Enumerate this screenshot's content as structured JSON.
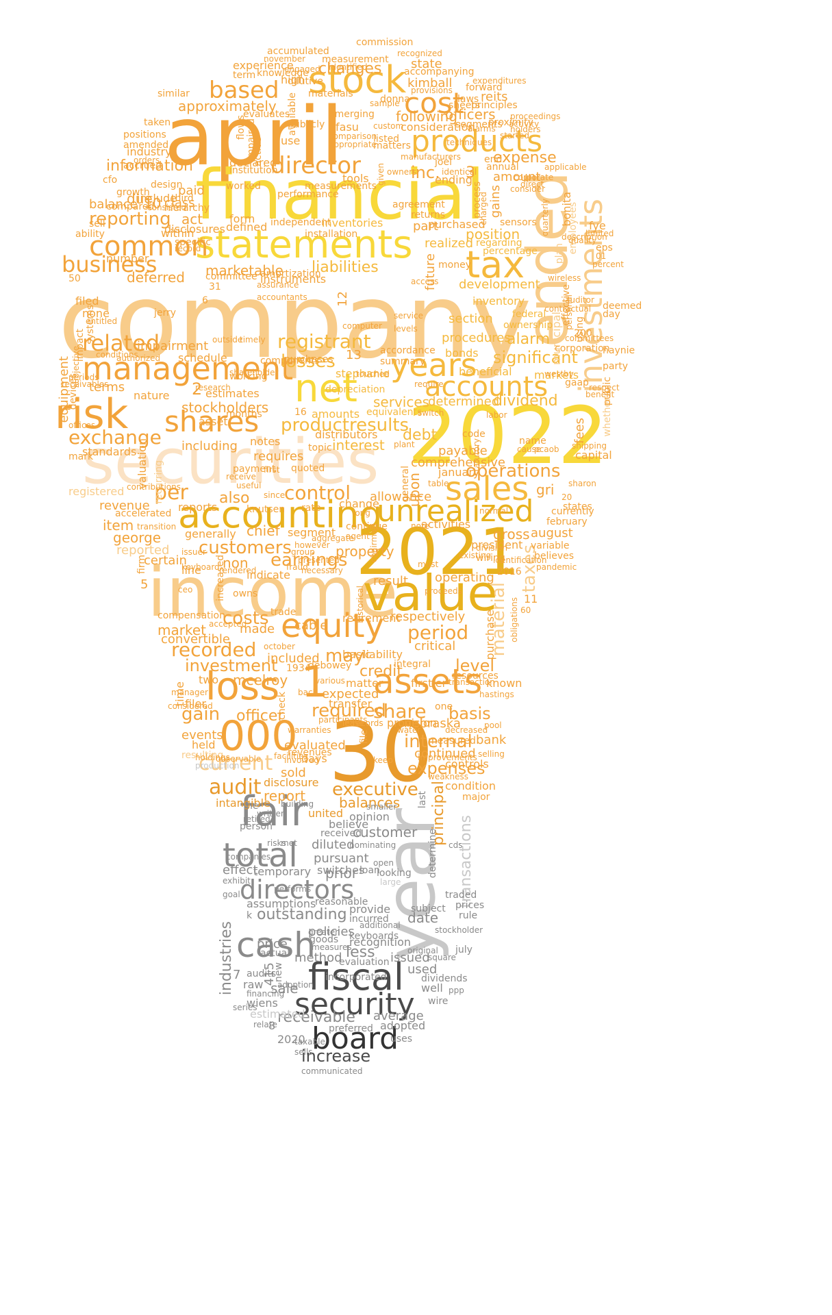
{
  "colors": {
    "orange": "#f2a33a",
    "amber": "#f5b93d",
    "yellow": "#f8d83a",
    "peach": "#f8cc8a",
    "pale_peach": "#fbe2c4",
    "dark_orange": "#e89a2c",
    "gold": "#e8b11d",
    "gray": "#8a8a8a",
    "light_gray": "#c8c8c8",
    "dark_gray": "#4a4a4a",
    "near_black": "#333333"
  },
  "words": {
    "company": "company",
    "april": "april",
    "financial": "financial",
    "statements": "statements",
    "stock": "stock",
    "products": "products",
    "ended": "ended",
    "investments": "investments",
    "tax": "tax",
    "y2022": "2022",
    "securities": "securities",
    "y2021": "2021",
    "income": "income",
    "value": "value",
    "accounting": "accounting",
    "unrealized": "unrealized",
    "sales": "sales",
    "management": "management",
    "risk": "risk",
    "net": "net",
    "years": "years",
    "accounts": "accounts",
    "common": "common",
    "business": "business",
    "director": "director",
    "cost": "cost",
    "based": "based",
    "n30": "30",
    "year": "year",
    "fair": "fair",
    "total": "total",
    "cash": "cash",
    "fiscal": "fiscal",
    "security": "security",
    "board": "board",
    "directors": "directors",
    "equity": "equity",
    "assets": "assets",
    "loss": "loss",
    "n000": "000",
    "n1": "1",
    "shares": "shares",
    "exchange": "exchange",
    "related": "related",
    "reporting": "reporting",
    "information": "information",
    "registrant": "registrant",
    "losses": "losses",
    "significant": "significant",
    "customers": "customers",
    "earnings": "earnings",
    "per": "per",
    "control": "control",
    "operations": "operations",
    "executive": "executive",
    "current": "current",
    "audit": "audit",
    "expenses": "expenses",
    "internal": "internal",
    "required": "required",
    "share": "share",
    "period": "period",
    "recorded": "recorded",
    "investment": "investment",
    "costs": "costs",
    "material": "material",
    "taxes": "taxes",
    "principal": "principal",
    "industries": "industries",
    "transactions": "transactions",
    "inc": "inc.",
    "changes": "changes",
    "approximately": "approximately",
    "expense": "expense",
    "dividend": "dividend",
    "stockholders": "stockholders",
    "services": "services",
    "debt": "debt",
    "interest": "interest",
    "productresults": "productresults",
    "officer": "officer",
    "gain": "gain",
    "basis": "basis",
    "level": "level",
    "credit": "credit",
    "may": "may",
    "outstanding": "outstanding",
    "prior": "prior",
    "customer": "customer",
    "receivable": "receivable",
    "increase": "increase",
    "less": "less",
    "sale": "sale",
    "used": "used",
    "date": "date",
    "price": "price",
    "policies": "policies",
    "issued": "issued",
    "method": "method",
    "alarm": "alarm",
    "position": "position",
    "liabilities": "liabilities",
    "marketable": "marketable",
    "deferred": "deferred",
    "item": "item",
    "george": "george",
    "revenue": "revenue",
    "reported": "reported",
    "certain": "certain",
    "also": "also",
    "due": "due",
    "act": "act",
    "class": "class",
    "n10": "10",
    "terms": "terms",
    "nature": "nature",
    "impairment": "impairment",
    "schedule": "schedule",
    "estimates": "estimates",
    "n2": "2",
    "n3": "3",
    "n13": "13",
    "n12": "12",
    "n11": "11",
    "n5": "5",
    "n7": "7",
    "n415": "415",
    "n8": "8",
    "y2020": "2020",
    "following": "following",
    "officers": "officers",
    "kimball": "kimball",
    "reits": "reits",
    "state": "state",
    "experience": "experience",
    "accumulated": "accumulated",
    "commission": "commission",
    "fasu": "fasu",
    "consideration": "consideration",
    "matters": "matters",
    "joel": "joel",
    "ending": "ending",
    "tools": "tools",
    "performance": "performance",
    "declared": "declared",
    "use": "use",
    "amount": "amount",
    "annual": "annual",
    "gains": "gains",
    "plan": "plan",
    "employees": "employees",
    "bonita": "bonita",
    "fye": "fye",
    "description": "description",
    "realized": "realized",
    "regarding": "regarding",
    "percentage": "percentage",
    "development": "development",
    "inventory": "inventory",
    "inventories": "inventories",
    "federal": "federal",
    "municipal": "municipal",
    "deemed": "deemed",
    "haynie": "haynie",
    "section": "section",
    "procedures": "procedures",
    "bonds": "bonds",
    "beneficial": "beneficial",
    "markets": "markets",
    "determined": "determined",
    "fees": "fees",
    "capital": "capital",
    "whether": "whether",
    "party": "party",
    "gaap": "gaap",
    "comprehensive": "comprehensive",
    "payable": "payable",
    "january": "january",
    "gri": "gri",
    "states": "states",
    "february": "february",
    "currently": "currently",
    "august": "august",
    "gross": "gross",
    "president": "president",
    "variable": "variable",
    "believes": "believes",
    "wiring": "wiring",
    "pandemic": "pandemic",
    "operating": "operating",
    "result": "result",
    "respectively": "respectively",
    "purchase": "purchase",
    "critical": "critical",
    "known": "known",
    "firstier": "firstier",
    "resources": "resources",
    "nebraska": "nebraska",
    "provision": "provision",
    "bank": "bank",
    "continued": "continued",
    "controls": "controls",
    "condition": "condition",
    "major": "major",
    "balances": "balances",
    "united": "united",
    "opinion": "opinion",
    "believe": "believe",
    "received": "received",
    "diluted": "diluted",
    "pursuant": "pursuant",
    "switches": "switches",
    "loan": "loan",
    "temporary": "temporary",
    "effect": "effect",
    "assumptions": "assumptions",
    "reasonable": "reasonable",
    "provide": "provide",
    "incurred": "incurred",
    "keyboards": "keyboards",
    "recognition": "recognition",
    "evaluation": "evaluation",
    "incorporated": "incorporated",
    "dividends": "dividends",
    "well": "well",
    "wire": "wire",
    "wiens": "wiens",
    "estimated": "estimated",
    "raw": "raw",
    "average": "average",
    "adopted": "adopted",
    "preferred": "preferred",
    "uses": "uses",
    "report": "report",
    "intangible": "intangible",
    "disclosure": "disclosure",
    "days": "days",
    "sold": "sold",
    "evaluated": "evaluated",
    "events": "events",
    "held": "held",
    "resulting": "resulting",
    "filer": "filer",
    "mcelroy": "mcelroy",
    "two": "two",
    "time": "time",
    "expected": "expected",
    "transfer": "transfer",
    "matter": "matter",
    "check": "check",
    "included": "included",
    "debowey": "debowey",
    "basic": "basic",
    "liability": "liability",
    "integral": "integral",
    "made": "made",
    "market": "market",
    "convertible": "convertible",
    "compensation": "compensation",
    "cable": "cable",
    "retirement": "retirement",
    "owns": "owns",
    "indicate": "indicate",
    "property": "property",
    "chief": "chief",
    "non": "non",
    "generally": "generally",
    "reports": "reports",
    "accelerated": "accelerated",
    "line": "line",
    "allowance": "allowance",
    "upon": "upon",
    "change": "change",
    "continue": "continue",
    "activities": "activities",
    "segment": "segment",
    "rate": "rate",
    "knutsen": "knutsen",
    "registered": "registered",
    "standards": "standards",
    "mark": "mark",
    "valuation": "valuation",
    "recurring": "recurring",
    "including": "including",
    "notes": "notes",
    "requires": "requires",
    "distributors": "distributors",
    "amounts": "amounts",
    "stephanie": "stephanie",
    "depreciation": "depreciation",
    "equivalents": "equivalents",
    "purchases": "purchases",
    "components": "components",
    "accordance": "accordance",
    "summary": "summary",
    "equipment": "equipment",
    "devices": "devices",
    "impact": "impact",
    "systems": "systems",
    "filed": "filed",
    "none": "none",
    "jerry": "jerry",
    "number": "number",
    "committee": "committee",
    "instruments": "instruments",
    "amortization": "amortization",
    "defined": "defined",
    "disclosures": "disclosures",
    "within": "within",
    "form": "form",
    "independent": "independent",
    "installation": "installation",
    "part": "part",
    "purchased": "purchased",
    "future": "future",
    "money": "money",
    "balance": "balance",
    "growth": "growth",
    "include": "include",
    "paid": "paid",
    "compared": "compared",
    "industry": "industry",
    "accrued": "accrued",
    "positions": "positions",
    "amended": "amended",
    "taken": "taken",
    "similar": "similar",
    "term": "term",
    "high": "high",
    "materials": "materials",
    "donna": "donna",
    "accompanying": "accompanying",
    "provisions": "provisions",
    "laws": "laws",
    "principles": "principles",
    "sheets": "sheets",
    "forward": "forward",
    "segments": "segments",
    "proximity": "proximity",
    "end": "end",
    "techniques": "techniques",
    "applicable": "applicable",
    "agreement": "agreement",
    "sensors": "sensors",
    "returns": "returns",
    "eps": "eps",
    "cfo": "cfo",
    "n50": "50",
    "n31": "31",
    "n16": "16",
    "n6": "6",
    "n200": "200",
    "y2016": "2016",
    "y1934": "1934",
    "sell": "sell",
    "ability": "ability",
    "recognized": "recognized",
    "measurement": "measurement",
    "assurance": "assurance",
    "accountants": "accountants",
    "name": "name",
    "code": "code",
    "shipping": "shipping",
    "limited": "limited",
    "ownership": "ownership",
    "corporation": "corporation",
    "using": "using",
    "day": "day",
    "hastings": "hastings",
    "one": "one",
    "measured": "measured",
    "improvements": "improvements",
    "selling": "selling",
    "weakness": "weakness",
    "last": "last",
    "determine": "determine",
    "subject": "subject",
    "traded": "traded",
    "prices": "prices",
    "rule": "rule",
    "july": "july",
    "stockholder": "stockholder",
    "goods": "goods",
    "greater": "greater",
    "actual": "actual",
    "audits": "audits",
    "new": "new",
    "k": "k",
    "ne": "ne",
    "person": "person",
    "companies": "companies",
    "exhibit": "exhibit",
    "goal": "goal",
    "financing": "financing",
    "series": "series",
    "relate": "relate",
    "taxable": "taxable",
    "sells": "sells",
    "communicated": "communicated",
    "written": "written",
    "retired": "retired",
    "building": "building",
    "smaller": "smaller",
    "open": "open",
    "looking": "looking",
    "large": "large",
    "original": "original",
    "square": "square",
    "ppp": "ppp",
    "cds": "cds",
    "risks": "risks",
    "met": "met",
    "nominating": "nominating",
    "performs": "performs",
    "additional": "additional",
    "measures": "measures",
    "adoption": "adoption",
    "production": "production",
    "observable": "observable",
    "involved": "involved",
    "holdings": "holdings",
    "facilities": "facilities",
    "revenues": "revenues",
    "keep": "keep",
    "decreased": "decreased",
    "water": "water",
    "pool": "pool",
    "records": "records",
    "file": "file",
    "participants": "participants",
    "warranties": "warranties",
    "historical": "historical",
    "chairman": "chairman",
    "proceeds": "proceeds",
    "firm": "firm",
    "ceo": "ceo",
    "accepted": "accepted",
    "contributions": "contributions",
    "receive": "receive",
    "payment": "payment",
    "useful": "useful",
    "first": "first",
    "quoted": "quoted",
    "since": "since",
    "topic": "topic",
    "increased": "increased",
    "october": "october",
    "trade": "trade",
    "obligations": "obligations",
    "n60": "60",
    "n20": "20",
    "sharon": "sharon",
    "auditor": "auditor",
    "committees": "committees",
    "westby": "westby",
    "benefit": "benefit",
    "respect": "respect",
    "public": "public",
    "percent": "percent",
    "n01": "01",
    "quality": "quality",
    "wireless": "wireless",
    "effective": "effective",
    "personal": "personal",
    "transaction": "transaction",
    "manager": "manager",
    "considered": "considered",
    "back": "back",
    "various": "various",
    "months": "months",
    "asset": "asset",
    "research": "research",
    "working": "working",
    "shareholder": "shareholder",
    "outside": "outside",
    "timely": "timely",
    "computer": "computer",
    "levels": "levels",
    "service": "service",
    "authorized": "authorized",
    "receivables": "receivables",
    "conditions": "conditions",
    "offices": "offices",
    "periods": "periods",
    "subjective": "subjective",
    "design": "design",
    "consisted": "consisted",
    "hierarchy": "hierarchy",
    "third": "third",
    "orders": "orders",
    "worked": "worked",
    "institution": "institution",
    "measurements": "measurements",
    "flows": "flows",
    "impaired": "impaired",
    "publicly": "publicly",
    "active": "active",
    "evaluates": "evaluates",
    "knowledge": "knowledge",
    "dilutive": "dilutive",
    "available": "available",
    "emerging": "emerging",
    "sample": "sample",
    "custom": "custom",
    "listed": "listed",
    "comparison": "comparison",
    "appropriate": "appropriate",
    "given": "given",
    "manufacturers": "manufacturers",
    "owners": "owners",
    "identical": "identical",
    "process": "process",
    "charged": "charged",
    "alarms": "alarms",
    "corporate": "corporate",
    "direct": "direct",
    "activity": "activity",
    "consider": "consider",
    "quarterly": "quarterly",
    "holders": "holders",
    "started": "started",
    "expenditures": "expenditures",
    "contractual": "contractual",
    "proceedings": "proceedings",
    "november": "november",
    "engaged": "engaged",
    "identified": "identified",
    "entitled": "entitled",
    "specific": "specific",
    "record": "record",
    "access": "access",
    "statutory": "statutory",
    "labor": "labor",
    "cause": "cause",
    "pcaob": "pcaob",
    "general": "general",
    "table": "table",
    "plant": "plant",
    "issuer": "issuer",
    "keyboard": "keyboard",
    "presented": "presented",
    "fraud": "fraud",
    "necessary": "necessary",
    "agent": "agent",
    "however": "however",
    "aggregate": "aggregate",
    "note": "note",
    "division": "division",
    "identification": "identification",
    "existing": "existing",
    "must": "must",
    "rendered": "rendered",
    "lease": "lease",
    "long": "long",
    "normal": "normal",
    "transition": "transition",
    "group": "group",
    "touched": "touched",
    "require": "require",
    "switch": "switch"
  }
}
